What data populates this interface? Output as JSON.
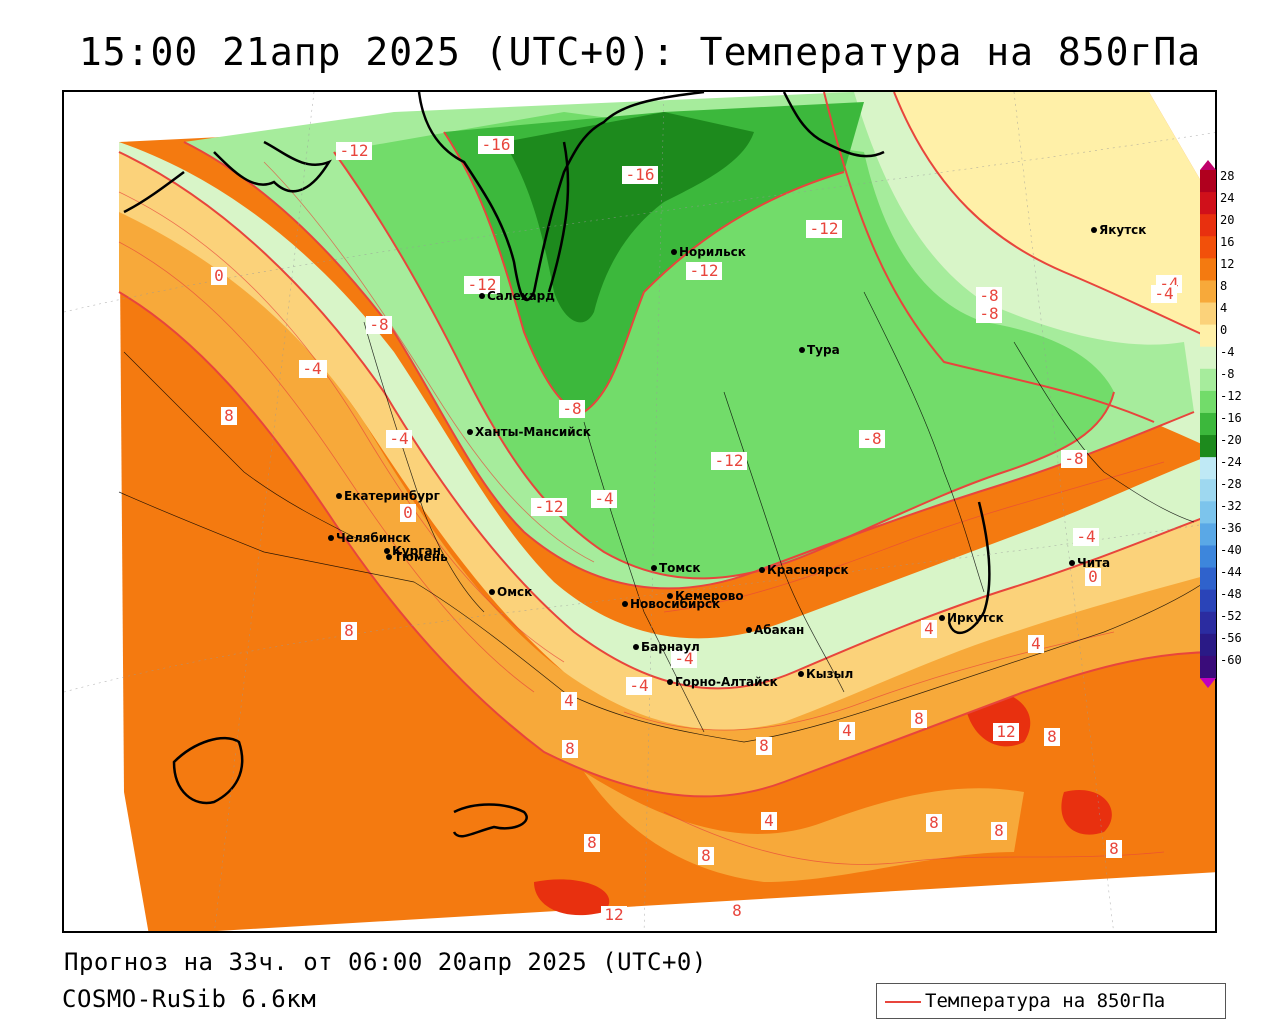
{
  "title": "15:00 21апр 2025 (UTC+0): Температура на 850гПа",
  "footer": {
    "forecast": "Прогноз на 33ч. от 06:00 20апр 2025 (UTC+0)",
    "model": "COSMO-RuSib 6.6км"
  },
  "legend": {
    "label": "Температура на 850гПа",
    "line_color": "#e8453c"
  },
  "colorbar": {
    "ticks": [
      "28",
      "24",
      "20",
      "16",
      "12",
      "8",
      "4",
      "0",
      "-4",
      "-8",
      "-12",
      "-16",
      "-20",
      "-24",
      "-28",
      "-32",
      "-36",
      "-40",
      "-44",
      "-48",
      "-52",
      "-56",
      "-60"
    ],
    "colors": [
      "#b0001e",
      "#d0101a",
      "#e8300f",
      "#f2500a",
      "#f47a10",
      "#f7a93a",
      "#fbd27a",
      "#fff0a8",
      "#d8f5c8",
      "#a6ec9c",
      "#72dc6a",
      "#3cb83c",
      "#1d8a1d",
      "#bfe9f5",
      "#9ed8f0",
      "#7cc4ec",
      "#5aa8e6",
      "#3d86dc",
      "#2f62cc",
      "#2a44b8",
      "#2b2ca0",
      "#2a1a86",
      "#3a0c7a"
    ]
  },
  "cities": [
    {
      "name": "Якутск"
    },
    {
      "name": "Норильск"
    },
    {
      "name": "Салехард"
    },
    {
      "name": "Тура"
    },
    {
      "name": "Ханты-Мансийск"
    },
    {
      "name": "Екатеринбург"
    },
    {
      "name": "Тюмень"
    },
    {
      "name": "Челябинск"
    },
    {
      "name": "Курган"
    },
    {
      "name": "Омск"
    },
    {
      "name": "Томск"
    },
    {
      "name": "Красноярск"
    },
    {
      "name": "Новосибирск"
    },
    {
      "name": "Кемерово"
    },
    {
      "name": "Абакан"
    },
    {
      "name": "Барнаул"
    },
    {
      "name": "Горно-Алтайск"
    },
    {
      "name": "Кызыл"
    },
    {
      "name": "Иркутск"
    },
    {
      "name": "Чита"
    }
  ],
  "isoline_labels": [
    {
      "text": "-12"
    },
    {
      "text": "-16"
    },
    {
      "text": "-16"
    },
    {
      "text": "-12"
    },
    {
      "text": "-12"
    },
    {
      "text": "-12"
    },
    {
      "text": "0"
    },
    {
      "text": "-8"
    },
    {
      "text": "-4"
    },
    {
      "text": "-8"
    },
    {
      "text": "-4"
    },
    {
      "text": "-4"
    },
    {
      "text": "8"
    },
    {
      "text": "-4"
    },
    {
      "text": "-12"
    },
    {
      "text": "-12"
    },
    {
      "text": "-8"
    },
    {
      "text": "-8"
    },
    {
      "text": "-8"
    },
    {
      "text": "-8"
    },
    {
      "text": "-4"
    },
    {
      "text": "-4"
    },
    {
      "text": "0"
    },
    {
      "text": "0"
    },
    {
      "text": "8"
    },
    {
      "text": "-4"
    },
    {
      "text": "-4"
    },
    {
      "text": "4"
    },
    {
      "text": "8"
    },
    {
      "text": "8"
    },
    {
      "text": "4"
    },
    {
      "text": "4"
    },
    {
      "text": "12"
    },
    {
      "text": "8"
    },
    {
      "text": "8"
    },
    {
      "text": "4"
    },
    {
      "text": "8"
    },
    {
      "text": "8"
    },
    {
      "text": "8"
    },
    {
      "text": "8"
    },
    {
      "text": "4"
    },
    {
      "text": "12"
    },
    {
      "text": "8"
    },
    {
      "text": "8"
    },
    {
      "text": "-4"
    }
  ]
}
